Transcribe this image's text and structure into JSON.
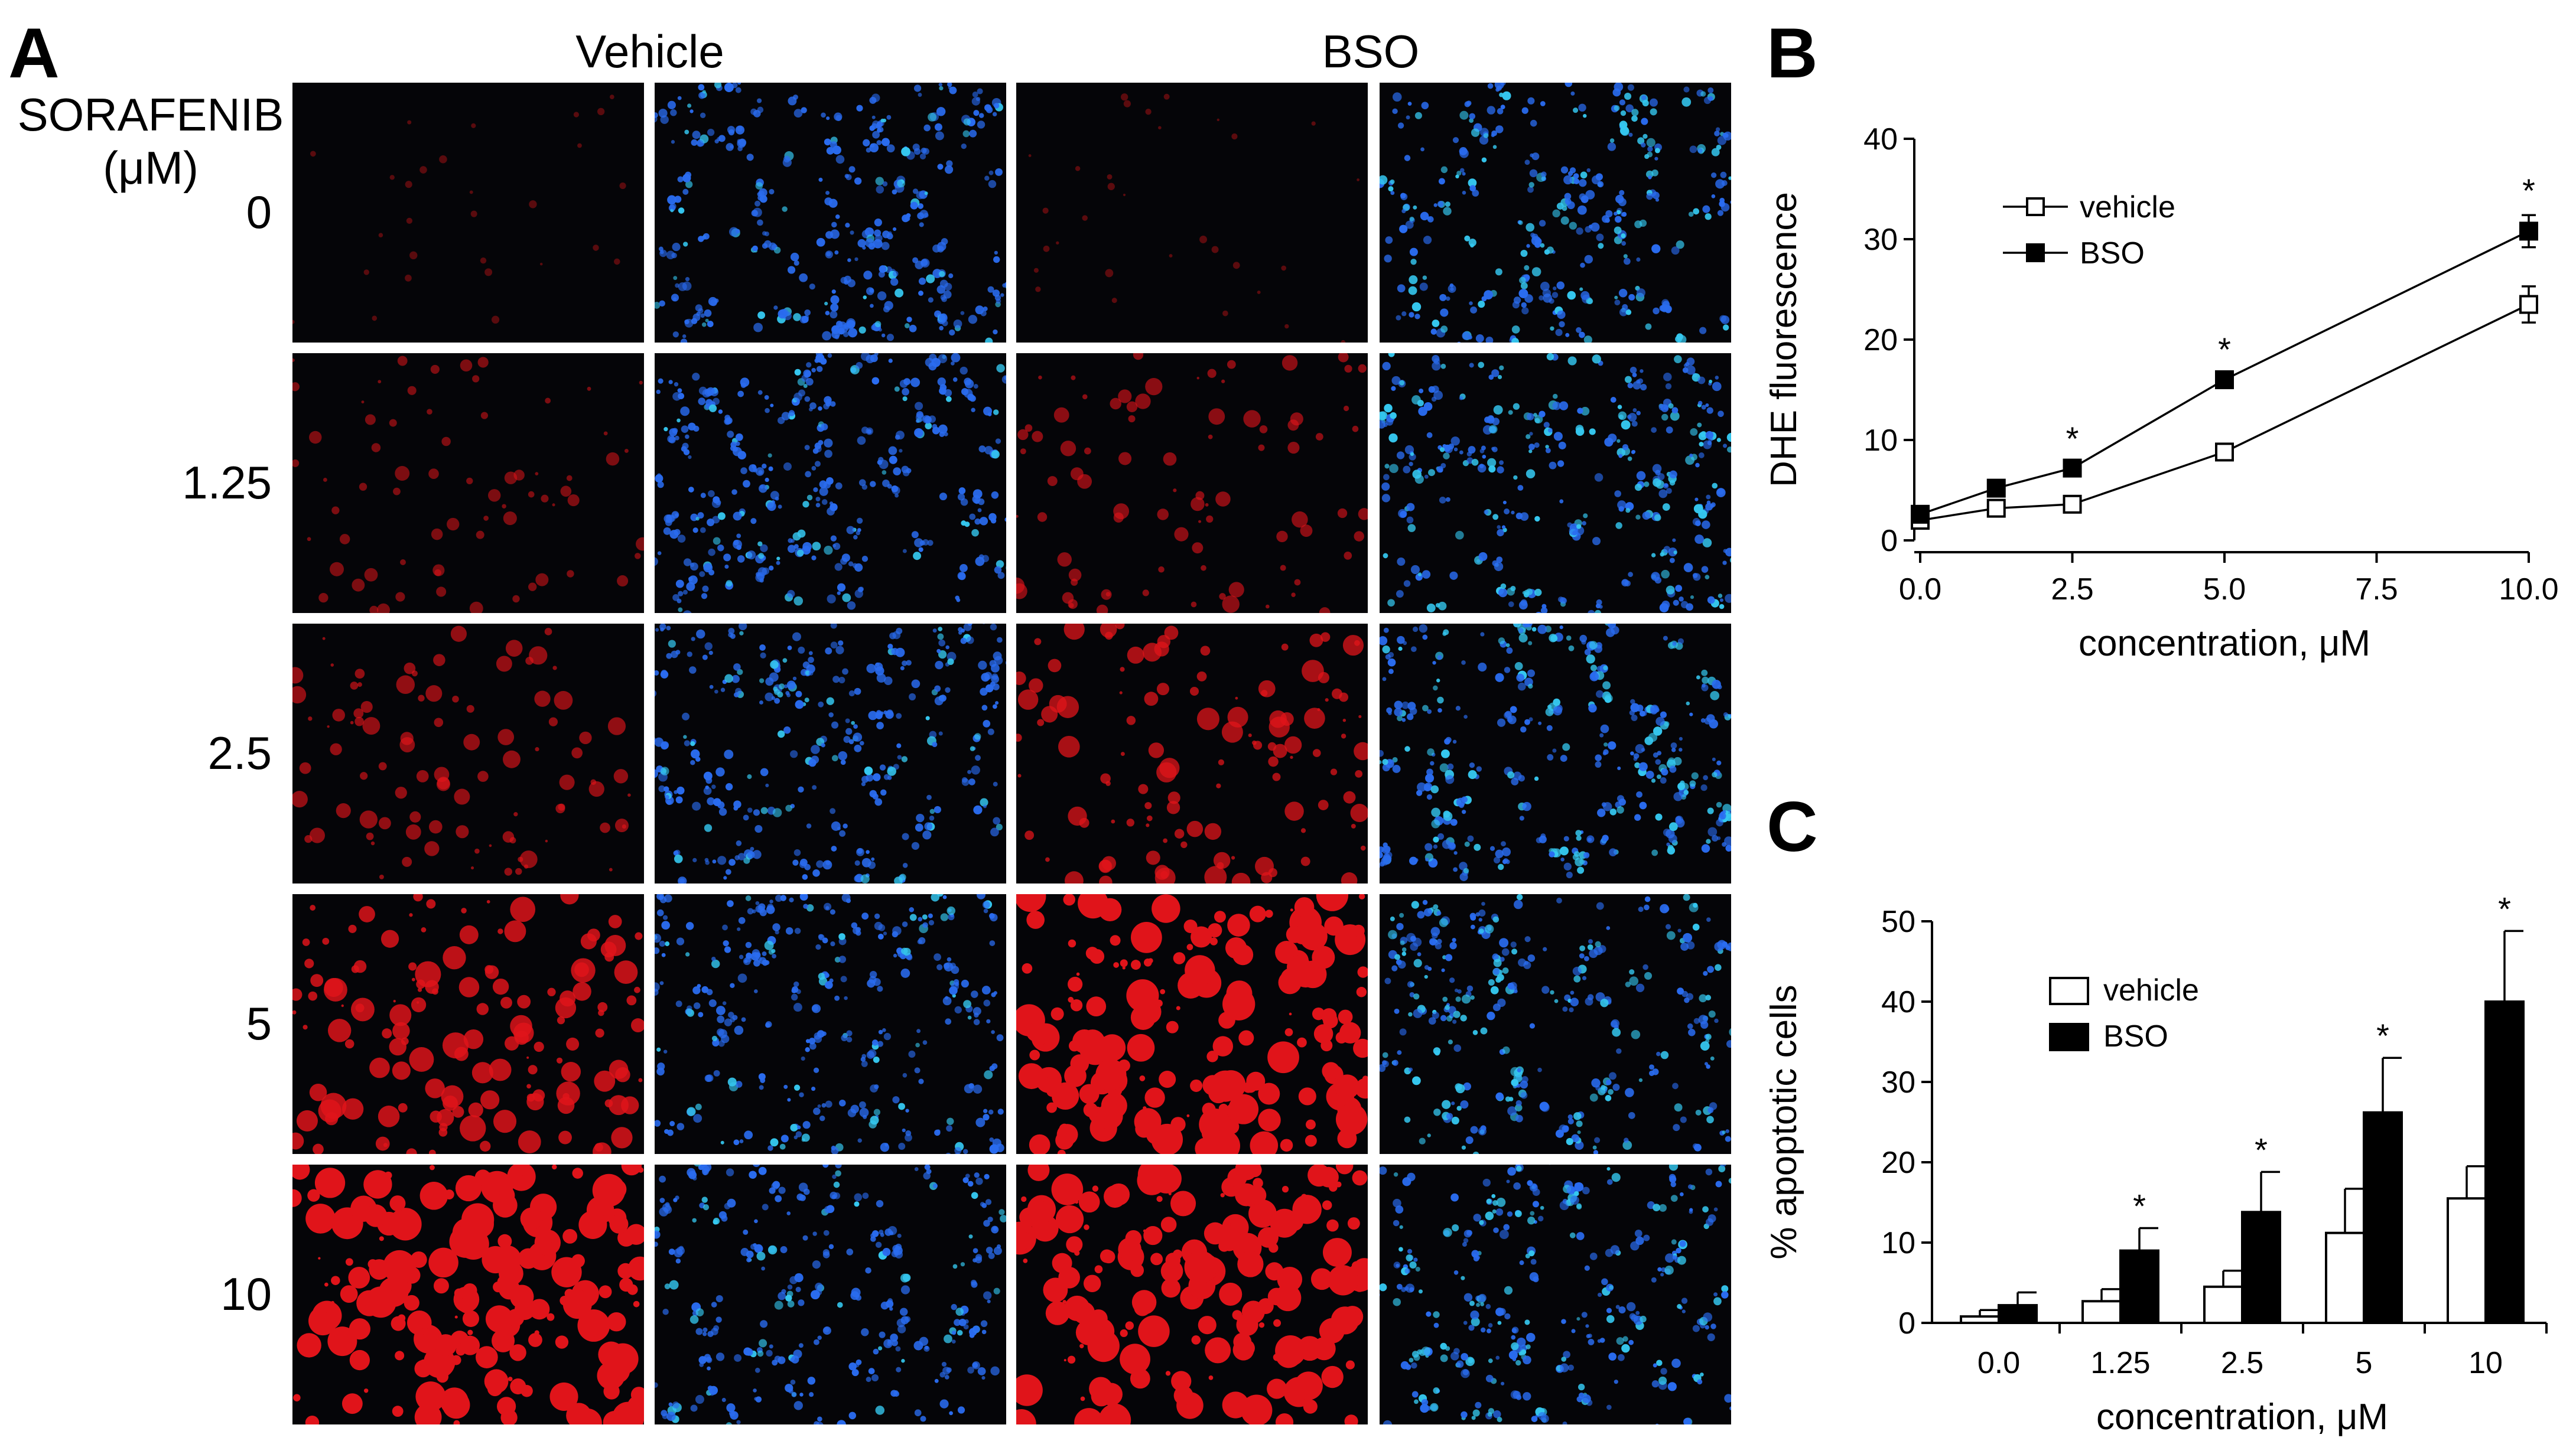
{
  "panel_a": {
    "letter": "A",
    "header_vehicle": "Vehicle",
    "header_bso": "BSO",
    "row_title_line1": "SORAFENIB",
    "row_title_line2": "(μM)",
    "rows": [
      {
        "label": "0",
        "red_intensity": 0.05,
        "blue_density": 0.85
      },
      {
        "label": "1.25",
        "red_intensity": 0.3,
        "blue_density": 0.9
      },
      {
        "label": "2.5",
        "red_intensity": 0.45,
        "blue_density": 0.85
      },
      {
        "label": "5",
        "red_intensity": 0.75,
        "blue_density": 0.8
      },
      {
        "label": "10",
        "red_intensity": 1.0,
        "blue_density": 0.75
      }
    ],
    "colors": {
      "red_channel": "#e0141a",
      "blue_channel": "#2a6cf0",
      "cyan_channel": "#35c8f0",
      "background": "#050508"
    }
  },
  "chart_data": [
    {
      "panel_letter": "B",
      "type": "line",
      "ylabel": "DHE fluorescence",
      "xlabel": "concentration, μM",
      "xlim": [
        0,
        10
      ],
      "ylim": [
        0,
        40
      ],
      "xticks": [
        "0.0",
        "2.5",
        "5.0",
        "7.5",
        "10.0"
      ],
      "yticks": [
        "0",
        "10",
        "20",
        "30",
        "40"
      ],
      "legend_position": "top-left",
      "series": [
        {
          "name": "vehicle",
          "marker": "open-square",
          "x": [
            0,
            1.25,
            2.5,
            5,
            10
          ],
          "y": [
            2.0,
            3.2,
            3.6,
            8.8,
            23.5
          ],
          "err": [
            0.3,
            0.4,
            0.4,
            0.6,
            1.8
          ]
        },
        {
          "name": "BSO",
          "marker": "filled-square",
          "x": [
            0,
            1.25,
            2.5,
            5,
            10
          ],
          "y": [
            2.6,
            5.2,
            7.2,
            16.0,
            30.8
          ],
          "err": [
            0.3,
            0.4,
            0.5,
            0.6,
            1.6
          ]
        }
      ],
      "significance": [
        {
          "x": 2.5,
          "label": "*"
        },
        {
          "x": 5,
          "label": "*"
        },
        {
          "x": 10,
          "label": "*"
        }
      ]
    },
    {
      "panel_letter": "C",
      "type": "bar",
      "ylabel": "% apoptotic cells",
      "xlabel": "concentration, μM",
      "categories": [
        "0.0",
        "1.25",
        "2.5",
        "5",
        "10"
      ],
      "ylim": [
        0,
        50
      ],
      "yticks": [
        "0",
        "10",
        "20",
        "30",
        "40",
        "50"
      ],
      "legend_position": "top-left",
      "series": [
        {
          "name": "vehicle",
          "fill": "#ffffff",
          "values": [
            0.8,
            2.7,
            4.5,
            11.2,
            15.5
          ],
          "err": [
            0.8,
            1.5,
            2.0,
            5.5,
            4.0
          ]
        },
        {
          "name": "BSO",
          "fill": "#000000",
          "values": [
            2.2,
            9.0,
            13.8,
            26.2,
            40.0
          ],
          "err": [
            1.6,
            2.8,
            5.0,
            6.8,
            8.8
          ]
        }
      ],
      "significance": [
        {
          "category": "1.25",
          "label": "*"
        },
        {
          "category": "2.5",
          "label": "*"
        },
        {
          "category": "5",
          "label": "*"
        },
        {
          "category": "10",
          "label": "*"
        }
      ]
    }
  ]
}
